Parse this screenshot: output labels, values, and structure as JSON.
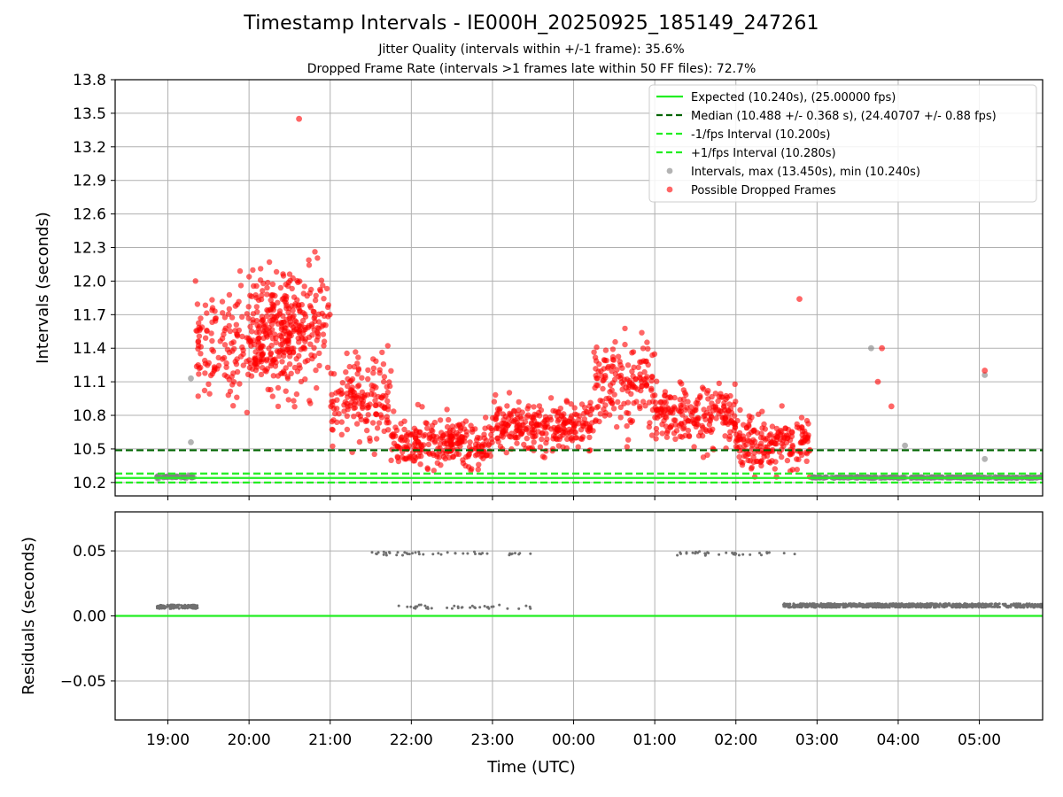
{
  "chart_data": [
    {
      "type": "scatter",
      "title": "Timestamp Intervals - IE000H_20250925_185149_247261",
      "subtitle_lines": [
        "Jitter Quality (intervals within +/-1 frame): 35.6%",
        "Dropped Frame Rate (intervals >1 frames late within 50 FF files): 72.7%"
      ],
      "xlabel": "",
      "ylabel": "Intervals (seconds)",
      "xlim_hours_from_1900": [
        -0.65,
        10.78
      ],
      "ylim": [
        10.08,
        13.8
      ],
      "yticks": [
        "10.2",
        "10.5",
        "10.8",
        "11.1",
        "11.4",
        "11.7",
        "12.0",
        "12.3",
        "12.6",
        "12.9",
        "13.2",
        "13.5",
        "13.8"
      ],
      "xticks": [
        "19:00",
        "20:00",
        "21:00",
        "22:00",
        "23:00",
        "00:00",
        "01:00",
        "02:00",
        "03:00",
        "04:00",
        "05:00"
      ],
      "grid": true,
      "legend_position": "upper-right",
      "reference_lines": [
        {
          "name": "Expected (10.240s), (25.00000 fps)",
          "value": 10.24,
          "color": "#22ee22",
          "style": "solid"
        },
        {
          "name": "Median (10.488 +/- 0.368 s), (24.40707 +/- 0.88 fps)",
          "value": 10.488,
          "color": "#006400",
          "style": "dashed"
        },
        {
          "name": "-1/fps Interval (10.200s)",
          "value": 10.2,
          "color": "#22ee22",
          "style": "dashed"
        },
        {
          "name": "+1/fps Interval (10.280s)",
          "value": 10.28,
          "color": "#22ee22",
          "style": "dashed"
        }
      ],
      "series": [
        {
          "name": "Intervals, max (13.450s), min (10.240s)",
          "color": "#808080"
        },
        {
          "name": "Possible Dropped Frames",
          "color": "#ff0000"
        }
      ],
      "trend_segments": [
        {
          "t_range": [
            "18:52",
            "19:20"
          ],
          "mean": 10.25,
          "spread": 0.01,
          "kind": "normal"
        },
        {
          "t_range": [
            "19:20",
            "20:40"
          ],
          "mean": 11.45,
          "spread": 0.38,
          "kind": "dropped"
        },
        {
          "t_range": [
            "20:00",
            "21:00"
          ],
          "mean": 11.6,
          "spread": 0.45,
          "kind": "dropped"
        },
        {
          "t_range": [
            "21:00",
            "21:45"
          ],
          "mean": 10.95,
          "spread": 0.3,
          "kind": "dropped"
        },
        {
          "t_range": [
            "21:45",
            "23:00"
          ],
          "mean": 10.55,
          "spread": 0.18,
          "kind": "dropped"
        },
        {
          "t_range": [
            "23:00",
            "00:15"
          ],
          "mean": 10.7,
          "spread": 0.18,
          "kind": "dropped"
        },
        {
          "t_range": [
            "00:15",
            "01:00"
          ],
          "mean": 11.1,
          "spread": 0.35,
          "kind": "dropped"
        },
        {
          "t_range": [
            "01:00",
            "02:00"
          ],
          "mean": 10.8,
          "spread": 0.22,
          "kind": "dropped"
        },
        {
          "t_range": [
            "02:00",
            "02:55"
          ],
          "mean": 10.55,
          "spread": 0.2,
          "kind": "dropped"
        },
        {
          "t_range": [
            "02:55",
            "05:50"
          ],
          "mean": 10.245,
          "spread": 0.005,
          "kind": "normal"
        }
      ],
      "highlight_points": [
        {
          "t": "20:37",
          "y": 13.45,
          "kind": "dropped"
        },
        {
          "t": "19:17",
          "y": 10.56,
          "kind": "normal"
        },
        {
          "t": "19:17",
          "y": 11.13,
          "kind": "normal"
        },
        {
          "t": "03:40",
          "y": 11.4,
          "kind": "normal"
        },
        {
          "t": "04:05",
          "y": 10.53,
          "kind": "normal"
        },
        {
          "t": "05:04",
          "y": 11.16,
          "kind": "normal"
        },
        {
          "t": "05:04",
          "y": 10.41,
          "kind": "normal"
        },
        {
          "t": "02:47",
          "y": 11.84,
          "kind": "dropped"
        },
        {
          "t": "03:48",
          "y": 11.4,
          "kind": "dropped"
        },
        {
          "t": "03:45",
          "y": 11.1,
          "kind": "dropped"
        },
        {
          "t": "03:55",
          "y": 10.88,
          "kind": "dropped"
        },
        {
          "t": "05:04",
          "y": 11.2,
          "kind": "dropped"
        }
      ]
    },
    {
      "type": "scatter",
      "title": "",
      "xlabel": "Time (UTC)",
      "ylabel": "Residuals (seconds)",
      "ylim": [
        -0.08,
        0.08
      ],
      "yticks": [
        "−0.05",
        "0.00",
        "0.05"
      ],
      "xticks": [
        "19:00",
        "20:00",
        "21:00",
        "22:00",
        "23:00",
        "00:00",
        "01:00",
        "02:00",
        "03:00",
        "04:00",
        "05:00"
      ],
      "grid": true,
      "reference_lines": [
        {
          "name": "",
          "value": 0.0,
          "color": "#22ee22",
          "style": "solid"
        }
      ],
      "series": [
        {
          "name": "",
          "color": "#707070",
          "description_values": [
            {
              "t_range": [
                "18:52",
                "19:22"
              ],
              "y": 0.007
            },
            {
              "t_range": [
                "21:45",
                "23:30"
              ],
              "y": 0.007
            },
            {
              "t_range": [
                "21:30",
                "23:30"
              ],
              "y": 0.048
            },
            {
              "t_range": [
                "01:15",
                "02:45"
              ],
              "y": 0.048
            },
            {
              "t_range": [
                "02:35",
                "05:50"
              ],
              "y": 0.008
            }
          ]
        }
      ]
    }
  ]
}
